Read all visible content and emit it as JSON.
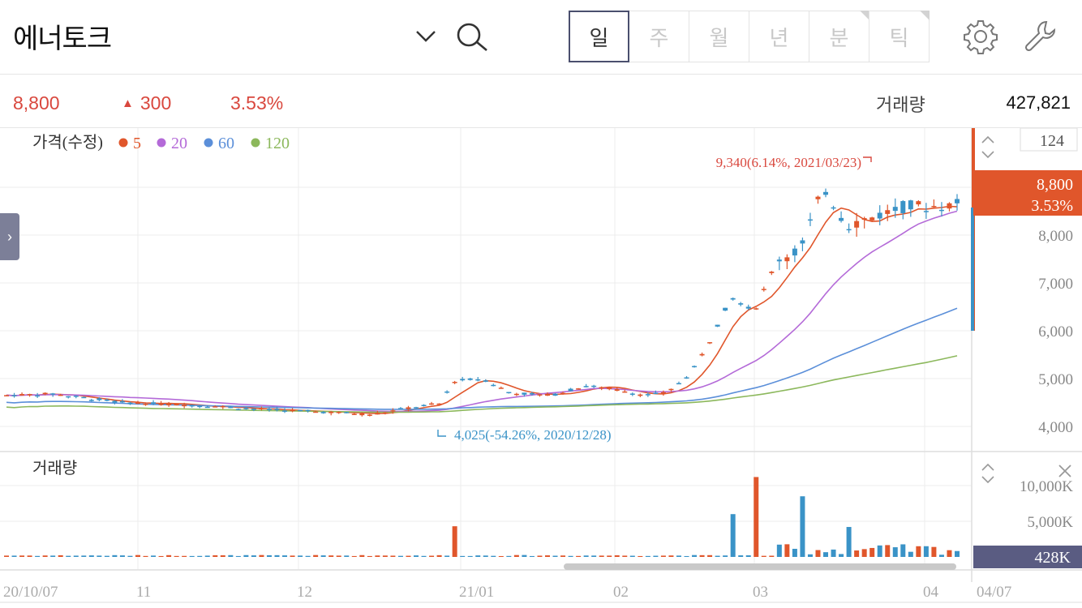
{
  "header": {
    "stock_name": "에너토크",
    "period_tabs": [
      {
        "label": "일",
        "active": true
      },
      {
        "label": "주",
        "active": false
      },
      {
        "label": "월",
        "active": false
      },
      {
        "label": "년",
        "active": false
      },
      {
        "label": "분",
        "active": false
      },
      {
        "label": "틱",
        "active": false
      }
    ],
    "icons": [
      "chevron-down-icon",
      "search-icon",
      "gear-icon",
      "wrench-icon"
    ]
  },
  "quote": {
    "price": "8,800",
    "change_arrow": "▲",
    "change": "300",
    "change_pct": "3.53%",
    "volume_label": "거래량",
    "volume": "427,821"
  },
  "price_panel": {
    "legend_title": "가격(수정)",
    "ma": [
      {
        "label": "5",
        "color": "#e0562b"
      },
      {
        "label": "20",
        "color": "#b46ad8"
      },
      {
        "label": "60",
        "color": "#5b8fd9"
      },
      {
        "label": "120",
        "color": "#8cb85c"
      }
    ],
    "counter": "124",
    "current_price_tag": "8,800",
    "current_pct_tag": "3.53%",
    "y_ticks": [
      "8,000",
      "7,000",
      "6,000",
      "5,000",
      "4,000"
    ],
    "high_annotation": "9,340(6.14%, 2021/03/23)",
    "low_annotation": "4,025(-54.26%, 2020/12/28)"
  },
  "volume_panel": {
    "title": "거래량",
    "y_ticks": [
      "10,000K",
      "5,000K"
    ],
    "current_tag": "428K"
  },
  "x_axis": {
    "labels": [
      "20/10/07",
      "11",
      "12",
      "21/01",
      "02",
      "03",
      "04",
      "04/07"
    ]
  },
  "colors": {
    "up": "#e0562b",
    "down": "#3a93c7",
    "accent": "#d9483e",
    "tab_active_border": "#4a4f6e",
    "volume_tag_bg": "#5a5c82"
  },
  "chart_data": {
    "type": "candlestick",
    "y_range": [
      3700,
      9700
    ],
    "volume_range_k": [
      0,
      13000
    ],
    "ohlc_sample": [
      {
        "date": "2020/12/28",
        "low": 4025
      },
      {
        "date": "2021/03/23",
        "high": 9340
      },
      {
        "date": "2021/04/07",
        "close": 8800,
        "volume_k": 428
      }
    ]
  }
}
